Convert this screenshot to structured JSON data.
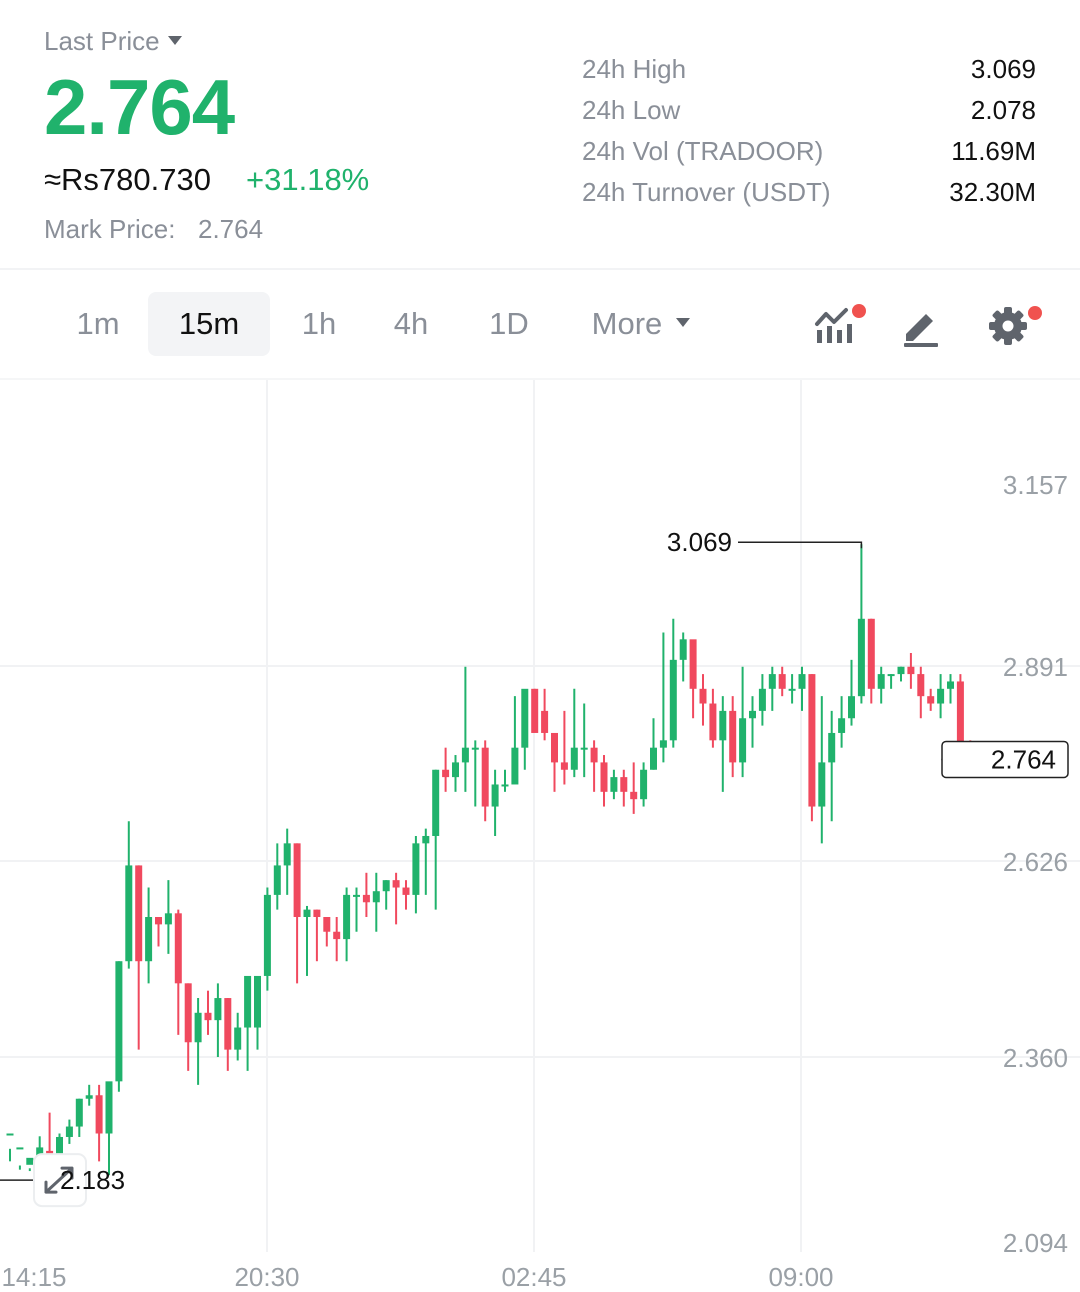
{
  "header": {
    "last_price_label": "Last Price",
    "last_price": "2.764",
    "fiat_value": "≈Rs780.730",
    "change_pct": "+31.18%",
    "mark_price_label": "Mark Price:",
    "mark_price": "2.764"
  },
  "stats": [
    {
      "label": "24h High",
      "value": "3.069"
    },
    {
      "label": "24h Low",
      "value": "2.078"
    },
    {
      "label": "24h Vol (TRADOOR)",
      "value": "11.69M"
    },
    {
      "label": "24h Turnover (USDT)",
      "value": "32.30M"
    }
  ],
  "toolbar": {
    "timeframes": [
      "1m",
      "15m",
      "1h",
      "4h",
      "1D"
    ],
    "active_timeframe": "15m",
    "more_label": "More",
    "icons": [
      "indicators-icon",
      "draw-icon",
      "settings-icon"
    ]
  },
  "colors": {
    "up": "#20b26c",
    "down": "#f0495e",
    "accent_dot": "#f0524f"
  },
  "chart_data": {
    "type": "candlestick",
    "interval": "15m",
    "x_tick_labels": [
      "14:15",
      "20:30",
      "02:45",
      "09:00"
    ],
    "y_tick_labels": [
      "3.157",
      "2.891",
      "2.626",
      "2.360",
      "2.094"
    ],
    "ylim": [
      2.07,
      3.26
    ],
    "grid": true,
    "annotations": [
      {
        "label": "3.069",
        "price": 3.069,
        "type": "high-marker"
      },
      {
        "label": "2.183",
        "price": 2.183,
        "type": "low-marker"
      },
      {
        "label": "2.764",
        "price": 2.764,
        "type": "last-price"
      }
    ],
    "candles": [
      [
        2.25,
        2.25,
        2.228,
        2.21
      ],
      [
        2.23,
        2.23,
        2.204,
        2.198
      ],
      [
        2.205,
        2.215,
        2.2,
        2.196
      ],
      [
        2.2,
        2.23,
        2.246,
        2.195
      ],
      [
        2.225,
        2.21,
        2.28,
        2.2
      ],
      [
        2.21,
        2.245,
        2.25,
        2.195
      ],
      [
        2.245,
        2.26,
        2.27,
        2.235
      ],
      [
        2.26,
        2.3,
        2.3,
        2.245
      ],
      [
        2.3,
        2.305,
        2.32,
        2.29
      ],
      [
        2.305,
        2.25,
        2.32,
        2.21
      ],
      [
        2.25,
        2.325,
        2.32,
        2.19
      ],
      [
        2.325,
        2.49,
        2.49,
        2.31
      ],
      [
        2.49,
        2.62,
        2.68,
        2.48
      ],
      [
        2.62,
        2.49,
        2.62,
        2.37
      ],
      [
        2.49,
        2.55,
        2.59,
        2.46
      ],
      [
        2.55,
        2.54,
        2.55,
        2.51
      ],
      [
        2.54,
        2.555,
        2.6,
        2.5
      ],
      [
        2.555,
        2.46,
        2.56,
        2.39
      ],
      [
        2.46,
        2.38,
        2.46,
        2.34
      ],
      [
        2.38,
        2.42,
        2.44,
        2.32
      ],
      [
        2.42,
        2.41,
        2.45,
        2.39
      ],
      [
        2.41,
        2.44,
        2.46,
        2.36
      ],
      [
        2.44,
        2.37,
        2.44,
        2.34
      ],
      [
        2.37,
        2.4,
        2.42,
        2.355
      ],
      [
        2.4,
        2.47,
        2.47,
        2.34
      ],
      [
        2.4,
        2.47,
        2.42,
        2.37
      ],
      [
        2.47,
        2.58,
        2.59,
        2.45
      ],
      [
        2.58,
        2.62,
        2.65,
        2.56
      ],
      [
        2.62,
        2.65,
        2.67,
        2.58
      ],
      [
        2.65,
        2.55,
        2.65,
        2.46
      ],
      [
        2.55,
        2.56,
        2.565,
        2.47
      ],
      [
        2.56,
        2.55,
        2.56,
        2.49
      ],
      [
        2.55,
        2.53,
        2.55,
        2.51
      ],
      [
        2.53,
        2.52,
        2.55,
        2.49
      ],
      [
        2.52,
        2.58,
        2.59,
        2.49
      ],
      [
        2.58,
        2.58,
        2.59,
        2.53
      ],
      [
        2.58,
        2.57,
        2.61,
        2.55
      ],
      [
        2.57,
        2.585,
        2.61,
        2.53
      ],
      [
        2.585,
        2.6,
        2.6,
        2.56
      ],
      [
        2.6,
        2.59,
        2.61,
        2.54
      ],
      [
        2.59,
        2.58,
        2.6,
        2.56
      ],
      [
        2.58,
        2.65,
        2.66,
        2.555
      ],
      [
        2.65,
        2.66,
        2.67,
        2.58
      ],
      [
        2.66,
        2.75,
        2.75,
        2.56
      ],
      [
        2.75,
        2.74,
        2.78,
        2.72
      ],
      [
        2.74,
        2.76,
        2.77,
        2.72
      ],
      [
        2.76,
        2.78,
        2.89,
        2.72
      ],
      [
        2.78,
        2.78,
        2.79,
        2.7
      ],
      [
        2.78,
        2.7,
        2.79,
        2.68
      ],
      [
        2.7,
        2.73,
        2.75,
        2.66
      ],
      [
        2.73,
        2.73,
        2.75,
        2.72
      ],
      [
        2.73,
        2.78,
        2.85,
        2.76
      ],
      [
        2.78,
        2.86,
        2.85,
        2.75
      ],
      [
        2.86,
        2.8,
        2.86,
        2.83
      ],
      [
        2.83,
        2.8,
        2.86,
        2.79
      ],
      [
        2.8,
        2.76,
        2.77,
        2.72
      ],
      [
        2.76,
        2.75,
        2.83,
        2.73
      ],
      [
        2.75,
        2.78,
        2.86,
        2.74
      ],
      [
        2.78,
        2.78,
        2.84,
        2.74
      ],
      [
        2.78,
        2.76,
        2.79,
        2.72
      ],
      [
        2.76,
        2.72,
        2.77,
        2.7
      ],
      [
        2.72,
        2.74,
        2.75,
        2.71
      ],
      [
        2.74,
        2.72,
        2.75,
        2.7
      ],
      [
        2.72,
        2.71,
        2.76,
        2.69
      ],
      [
        2.71,
        2.75,
        2.76,
        2.7
      ],
      [
        2.75,
        2.78,
        2.82,
        2.75
      ],
      [
        2.78,
        2.79,
        2.94,
        2.76
      ],
      [
        2.79,
        2.9,
        2.96,
        2.78
      ],
      [
        2.9,
        2.93,
        2.94,
        2.87
      ],
      [
        2.93,
        2.86,
        2.92,
        2.82
      ],
      [
        2.86,
        2.84,
        2.88,
        2.81
      ],
      [
        2.84,
        2.79,
        2.86,
        2.78
      ],
      [
        2.79,
        2.83,
        2.85,
        2.72
      ],
      [
        2.83,
        2.76,
        2.85,
        2.74
      ],
      [
        2.76,
        2.82,
        2.89,
        2.74
      ],
      [
        2.82,
        2.83,
        2.85,
        2.78
      ],
      [
        2.83,
        2.86,
        2.88,
        2.81
      ],
      [
        2.86,
        2.88,
        2.89,
        2.83
      ],
      [
        2.88,
        2.86,
        2.89,
        2.85
      ],
      [
        2.86,
        2.86,
        2.88,
        2.84
      ],
      [
        2.86,
        2.88,
        2.89,
        2.83
      ],
      [
        2.88,
        2.7,
        2.88,
        2.68
      ],
      [
        2.7,
        2.76,
        2.85,
        2.65
      ],
      [
        2.76,
        2.8,
        2.83,
        2.68
      ],
      [
        2.8,
        2.82,
        2.85,
        2.78
      ],
      [
        2.82,
        2.85,
        2.9,
        2.81
      ],
      [
        2.85,
        2.96,
        3.069,
        2.84
      ],
      [
        2.96,
        2.86,
        2.96,
        2.84
      ],
      [
        2.86,
        2.88,
        2.89,
        2.84
      ],
      [
        2.88,
        2.88,
        2.88,
        2.86
      ],
      [
        2.88,
        2.89,
        2.89,
        2.87
      ],
      [
        2.89,
        2.88,
        2.91,
        2.86
      ],
      [
        2.88,
        2.85,
        2.89,
        2.82
      ],
      [
        2.85,
        2.84,
        2.86,
        2.83
      ],
      [
        2.84,
        2.86,
        2.88,
        2.82
      ],
      [
        2.86,
        2.87,
        2.88,
        2.84
      ],
      [
        2.87,
        2.78,
        2.88,
        2.76
      ],
      [
        2.78,
        2.764,
        2.79,
        2.74
      ]
    ]
  }
}
